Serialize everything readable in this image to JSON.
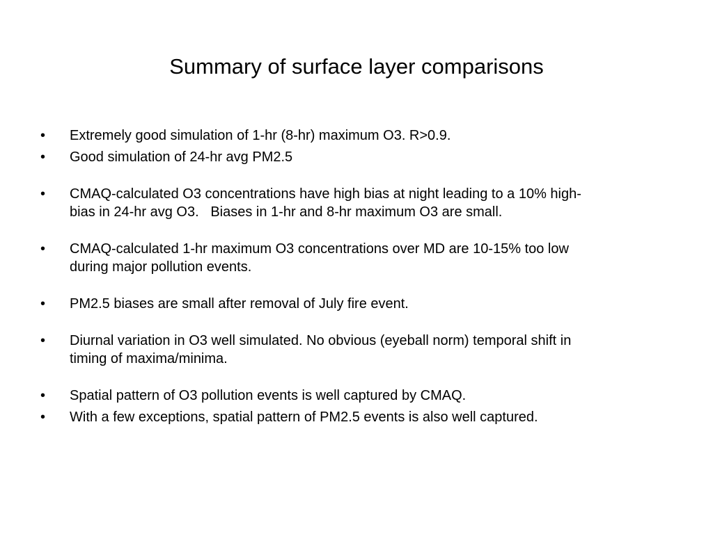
{
  "slide": {
    "title": "Summary of surface layer comparisons",
    "bullet_symbol": "•",
    "bullets": [
      {
        "text": "Extremely good simulation of 1-hr (8-hr) maximum O3. R>0.9."
      },
      {
        "text": "Good simulation of 24-hr avg PM2.5"
      },
      {
        "text": "CMAQ-calculated O3 concentrations have high bias at night leading to a 10% high-\nbias in 24-hr avg O3.   Biases in 1-hr and 8-hr maximum O3 are small."
      },
      {
        "text": "CMAQ-calculated 1-hr maximum O3 concentrations over MD are 10-15% too low\nduring major pollution events."
      },
      {
        "text": "PM2.5 biases are small after removal of July fire event."
      },
      {
        "text": "Diurnal variation in O3 well simulated. No obvious (eyeball norm) temporal shift in\ntiming of maxima/minima."
      },
      {
        "text": "Spatial pattern of O3 pollution events is well captured by CMAQ."
      },
      {
        "text": "With a few exceptions, spatial pattern of PM2.5 events is also well captured."
      }
    ]
  }
}
